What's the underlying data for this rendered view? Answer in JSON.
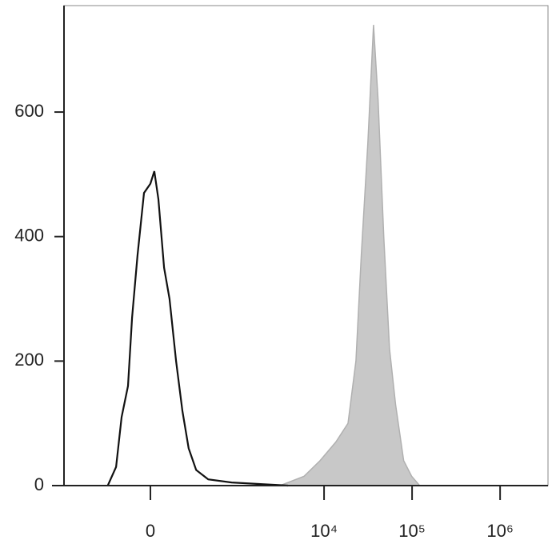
{
  "chart_data": {
    "type": "histogram-overlay",
    "x_scale": "biexponential",
    "xlim": [
      -1010,
      3500000
    ],
    "ylim": [
      0,
      771
    ],
    "xticks": [
      0,
      {
        "value": 10000,
        "label": "10⁴"
      },
      {
        "value": 100000,
        "label": "10⁵"
      },
      {
        "value": 1000000,
        "label": "10⁶"
      }
    ],
    "yticks": [
      0,
      200,
      400,
      600
    ],
    "series": [
      {
        "color": "#c8c8c8",
        "filled": true,
        "x": [
          3160,
          5930,
          9000,
          13600,
          18700,
          23000,
          26500,
          31400,
          36500,
          41100,
          47700,
          55400,
          65000,
          80300,
          99000,
          122000
        ],
        "values": [
          0,
          15,
          40,
          70,
          100,
          200,
          370,
          550,
          740,
          620,
          400,
          220,
          130,
          40,
          15,
          0
        ]
      },
      {
        "color": "#111111",
        "filled": false,
        "x": [
          -290,
          -218,
          -176,
          -132,
          -106,
          -73,
          -36,
          0,
          22,
          45,
          78,
          111,
          154,
          200,
          250,
          320,
          460,
          880,
          2080,
          3900
        ],
        "values": [
          0,
          30,
          110,
          160,
          270,
          370,
          470,
          485,
          505,
          460,
          350,
          300,
          200,
          120,
          60,
          25,
          10,
          5,
          2,
          0
        ]
      }
    ]
  }
}
